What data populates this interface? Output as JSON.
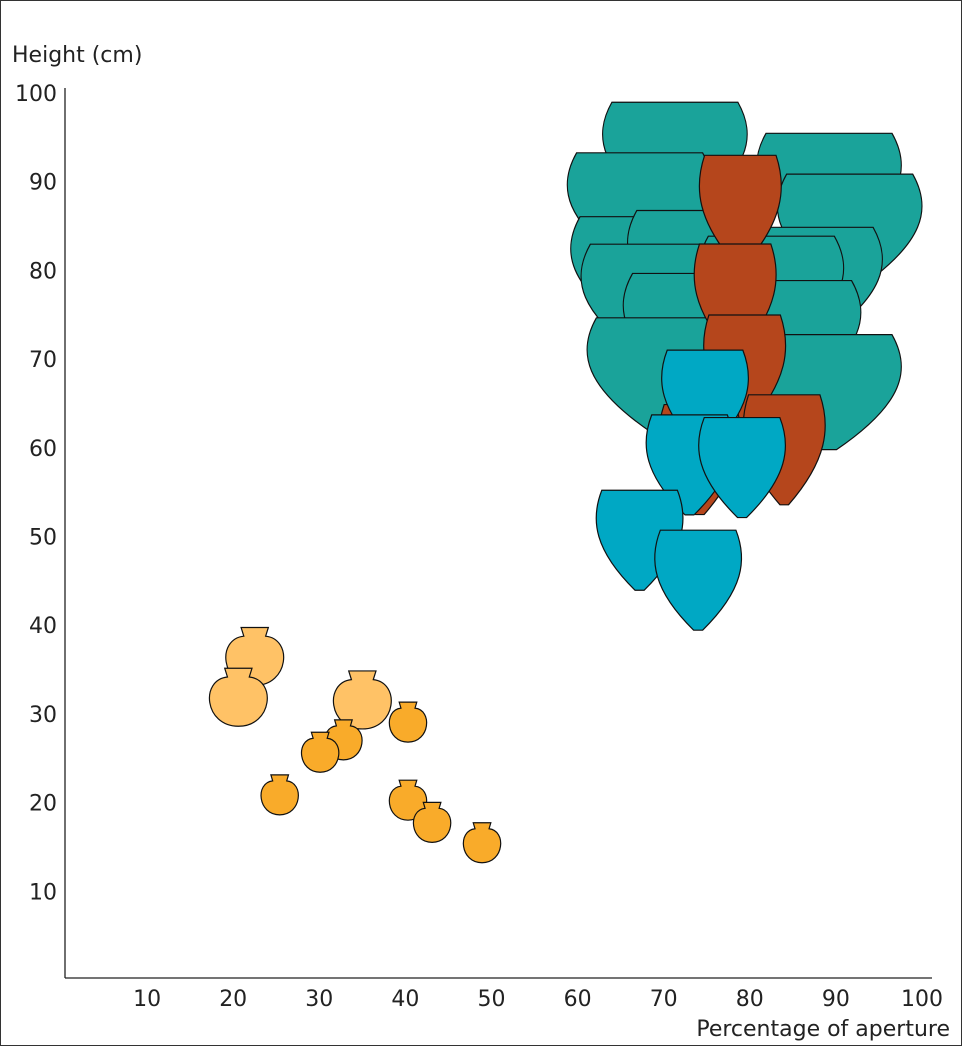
{
  "chart_data": {
    "type": "scatter",
    "y_label": "Height (cm)",
    "x_label": "Percentage of aperture",
    "xlim": [
      0,
      100
    ],
    "ylim": [
      0,
      100
    ],
    "xticks": [
      10,
      20,
      30,
      40,
      50,
      60,
      70,
      80,
      90,
      100
    ],
    "yticks": [
      10,
      20,
      30,
      40,
      50,
      60,
      70,
      80,
      90,
      100
    ],
    "series": [
      {
        "color": "#1aa39a",
        "x": [
          71.3,
          67.2,
          89.2,
          91.6,
          67.6,
          74.2,
          87.0,
          82.5,
          74.8,
          68.8,
          73.7,
          84.5,
          69.5,
          89.2
        ],
        "y": [
          92.7,
          87.0,
          89.2,
          84.6,
          79.8,
          80.5,
          78.6,
          77.6,
          74.1,
          76.7,
          73.4,
          72.6,
          68.4,
          66.5
        ]
      },
      {
        "color": "#b5461c",
        "x": [
          78.9,
          78.3,
          79.4,
          84.0,
          74.2
        ],
        "y": [
          87.0,
          77.0,
          69.0,
          60.0,
          58.9
        ]
      },
      {
        "color": "#00a8c4",
        "x": [
          74.8,
          73.0,
          79.1,
          67.2,
          74.0
        ],
        "y": [
          65.6,
          58.3,
          58.0,
          49.8,
          45.3
        ]
      },
      {
        "color": "#ffc266",
        "x": [
          22.5,
          20.6,
          35.0
        ],
        "y": [
          36.7,
          32.1,
          31.8
        ]
      },
      {
        "color": "#f9ab2a",
        "x": [
          40.3,
          32.8,
          30.1,
          25.4,
          40.3,
          43.1,
          48.9
        ],
        "y": [
          29.3,
          27.3,
          25.9,
          21.1,
          20.5,
          18.0,
          15.7
        ]
      }
    ]
  }
}
